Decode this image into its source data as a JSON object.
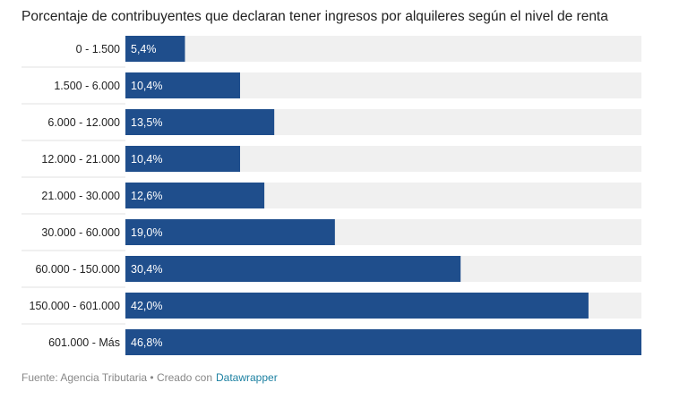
{
  "chart_data": {
    "type": "bar",
    "orientation": "horizontal",
    "title": "Porcentaje de contribuyentes que declaran tener ingresos por alquileres según el nivel de renta",
    "categories": [
      "0 - 1.500",
      "1.500 - 6.000",
      "6.000 - 12.000",
      "12.000 - 21.000",
      "21.000 - 30.000",
      "30.000 - 60.000",
      "60.000 - 150.000",
      "150.000 - 601.000",
      "601.000 - Más"
    ],
    "values": [
      5.4,
      10.4,
      13.5,
      10.4,
      12.6,
      19.0,
      30.4,
      42.0,
      46.8
    ],
    "value_labels": [
      "5,4%",
      "10,4%",
      "13,5%",
      "10,4%",
      "12,6%",
      "19,0%",
      "30,4%",
      "42,0%",
      "46,8%"
    ],
    "color": "#1f4e8c",
    "footer": {
      "source": "Fuente: Agencia Tributaria • Creado con",
      "link": "Datawrapper"
    }
  }
}
